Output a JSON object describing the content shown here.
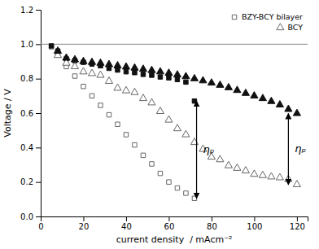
{
  "chart_data": {
    "type": "scatter",
    "xlabel": "current density  / mAcm⁻²",
    "ylabel": "Voltage / V",
    "xlim": [
      0,
      125
    ],
    "ylim": [
      0.0,
      1.2
    ],
    "xticks": [
      0,
      20,
      40,
      60,
      80,
      100,
      120
    ],
    "yticks": [
      {
        "value": 0.0,
        "label": "0.0"
      },
      0.2,
      0.4,
      0.6,
      0.8,
      {
        "value": 1.0,
        "label": "1.0"
      },
      1.2
    ],
    "grid": false,
    "legend": "upper right",
    "reference_line": {
      "y": 1.0,
      "color": "#888888"
    },
    "series": [
      {
        "name": "BZY-BCY bilayer",
        "marker": "square-open",
        "color": "#666666",
        "x": [
          5,
          8,
          12,
          16,
          20,
          24,
          28,
          32,
          36,
          40,
          44,
          48,
          52,
          56,
          60,
          64,
          68,
          72
        ],
        "values": [
          0.985,
          0.94,
          0.87,
          0.815,
          0.755,
          0.7,
          0.645,
          0.59,
          0.535,
          0.475,
          0.415,
          0.355,
          0.305,
          0.25,
          0.2,
          0.165,
          0.135,
          0.105
        ]
      },
      {
        "marker": "square",
        "color": "#111111",
        "x": [
          5,
          8,
          12,
          16,
          20,
          24,
          28,
          32,
          36,
          40,
          44,
          48,
          52,
          56,
          60,
          64,
          68,
          72
        ],
        "values": [
          0.99,
          0.96,
          0.915,
          0.905,
          0.895,
          0.885,
          0.875,
          0.86,
          0.85,
          0.84,
          0.835,
          0.825,
          0.82,
          0.81,
          0.805,
          0.795,
          0.78,
          0.67
        ]
      },
      {
        "name": "BCY",
        "marker": "triangle-open",
        "color": "#666666",
        "x": [
          8,
          12,
          16,
          20,
          24,
          28,
          32,
          36,
          40,
          44,
          48,
          52,
          56,
          60,
          64,
          68,
          72,
          76,
          80,
          84,
          88,
          92,
          96,
          100,
          104,
          108,
          112,
          116,
          120
        ],
        "values": [
          0.935,
          0.89,
          0.87,
          0.84,
          0.83,
          0.82,
          0.785,
          0.745,
          0.73,
          0.72,
          0.685,
          0.66,
          0.61,
          0.56,
          0.51,
          0.475,
          0.43,
          0.39,
          0.345,
          0.33,
          0.295,
          0.28,
          0.265,
          0.245,
          0.238,
          0.23,
          0.225,
          0.215,
          0.185
        ]
      },
      {
        "marker": "triangle",
        "color": "#111111",
        "x": [
          8,
          12,
          16,
          20,
          24,
          28,
          32,
          36,
          40,
          44,
          48,
          52,
          56,
          60,
          64,
          68,
          72,
          76,
          80,
          84,
          88,
          92,
          96,
          100,
          104,
          108,
          112,
          116,
          120
        ],
        "values": [
          0.96,
          0.92,
          0.91,
          0.9,
          0.895,
          0.89,
          0.882,
          0.875,
          0.868,
          0.862,
          0.855,
          0.848,
          0.84,
          0.832,
          0.822,
          0.812,
          0.8,
          0.788,
          0.775,
          0.762,
          0.748,
          0.732,
          0.715,
          0.7,
          0.685,
          0.668,
          0.648,
          0.622,
          0.598
        ]
      }
    ],
    "annotations": [
      {
        "text": "ηₚ",
        "x": 76,
        "y": 0.385,
        "arrow": {
          "x": 73,
          "y_top": 0.67,
          "y_bottom": 0.105
        }
      },
      {
        "text": "ηₚ",
        "x": 119,
        "y": 0.39,
        "arrow": {
          "x": 116,
          "y_top": 0.598,
          "y_bottom": 0.185
        }
      }
    ]
  }
}
